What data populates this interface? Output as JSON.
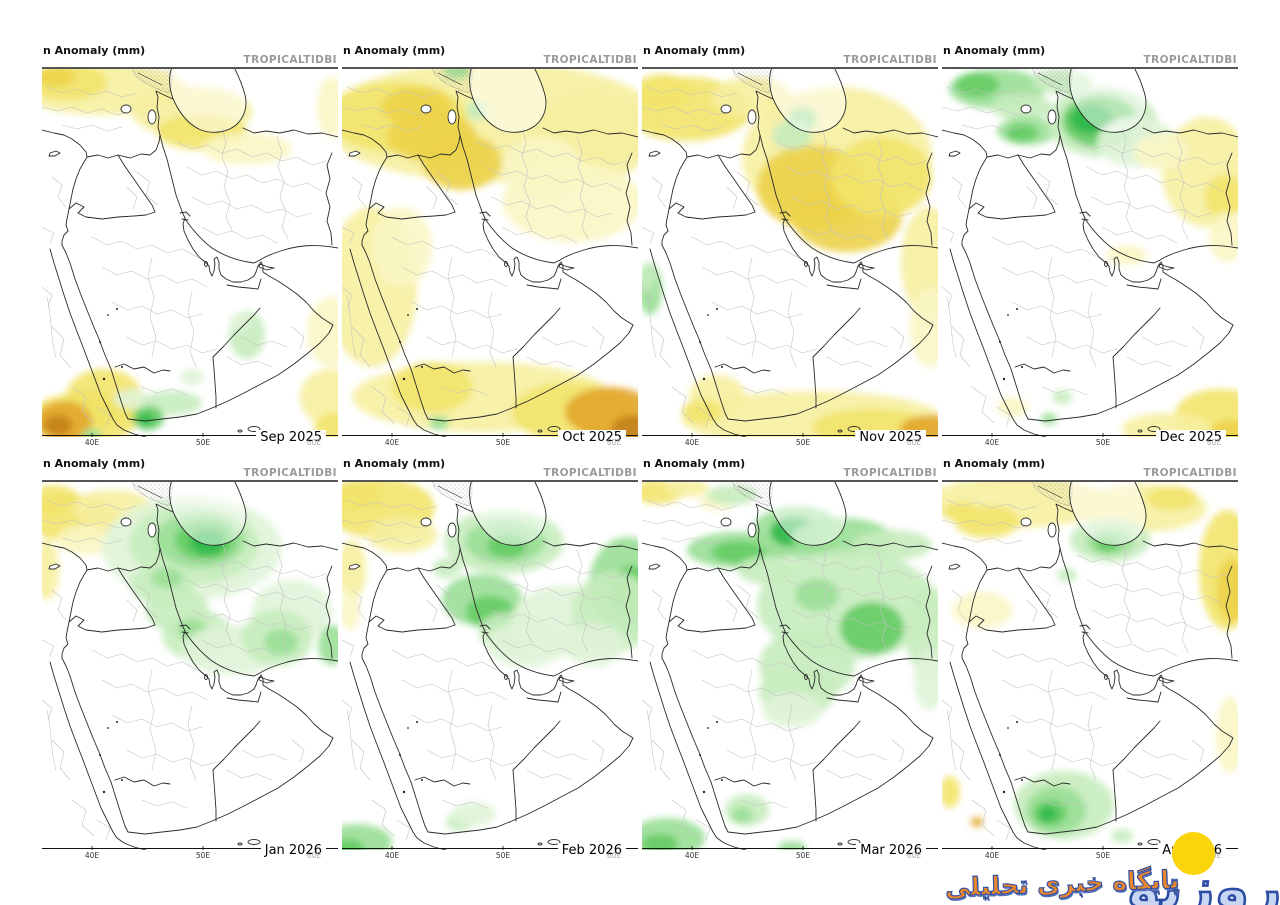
{
  "panel_title": "n Anomaly (mm)",
  "watermark": "TROPICALTIDBI",
  "axis_ticks": [
    "40E",
    "50E",
    "60E"
  ],
  "palette": {
    "y0": "#faf6c4",
    "y1": "#f6efa0",
    "y2": "#f2e46c",
    "y3": "#ecd34a",
    "o1": "#e2a62a",
    "o2": "#c4811a",
    "g0": "#e0f4d8",
    "g1": "#c6ecbe",
    "g2": "#9adf96",
    "g3": "#64cc64",
    "g4": "#2eb84a"
  },
  "panels": [
    {
      "month": "Sep 2025",
      "blobs": [
        [
          60,
          22,
          85,
          26,
          "y1"
        ],
        [
          25,
          15,
          40,
          18,
          "y2"
        ],
        [
          14,
          10,
          18,
          10,
          "y3"
        ],
        [
          150,
          45,
          60,
          26,
          "y1"
        ],
        [
          160,
          65,
          45,
          18,
          "y2"
        ],
        [
          205,
          82,
          45,
          16,
          "y0"
        ],
        [
          290,
          40,
          15,
          30,
          "y0"
        ],
        [
          290,
          265,
          25,
          35,
          "y0"
        ],
        [
          288,
          330,
          30,
          28,
          "y1"
        ],
        [
          292,
          360,
          20,
          14,
          "y2"
        ],
        [
          205,
          268,
          18,
          24,
          "g1"
        ],
        [
          198,
          255,
          10,
          10,
          "g0"
        ],
        [
          150,
          310,
          12,
          8,
          "g0"
        ],
        [
          62,
          330,
          38,
          28,
          "y2"
        ],
        [
          45,
          345,
          30,
          20,
          "y3"
        ],
        [
          40,
          352,
          55,
          26,
          "y2"
        ],
        [
          22,
          354,
          28,
          20,
          "o1"
        ],
        [
          16,
          358,
          14,
          10,
          "o2"
        ],
        [
          90,
          332,
          18,
          10,
          "g0"
        ],
        [
          130,
          336,
          30,
          12,
          "g1"
        ],
        [
          106,
          351,
          16,
          12,
          "g3"
        ],
        [
          104,
          352,
          8,
          6,
          "g4"
        ],
        [
          50,
          368,
          10,
          6,
          "g2"
        ]
      ]
    },
    {
      "month": "Oct 2025",
      "blobs": [
        [
          150,
          55,
          170,
          60,
          "y1"
        ],
        [
          55,
          50,
          70,
          35,
          "y2"
        ],
        [
          75,
          40,
          35,
          20,
          "y3"
        ],
        [
          90,
          70,
          45,
          25,
          "y3"
        ],
        [
          120,
          95,
          40,
          28,
          "y3"
        ],
        [
          250,
          70,
          60,
          45,
          "y1"
        ],
        [
          200,
          100,
          40,
          30,
          "y0"
        ],
        [
          230,
          135,
          70,
          40,
          "y0"
        ],
        [
          30,
          220,
          45,
          80,
          "y1"
        ],
        [
          60,
          180,
          30,
          40,
          "y0"
        ],
        [
          140,
          330,
          130,
          35,
          "y1"
        ],
        [
          90,
          320,
          40,
          25,
          "y2"
        ],
        [
          230,
          345,
          60,
          30,
          "y2"
        ],
        [
          268,
          345,
          45,
          25,
          "o1"
        ],
        [
          292,
          362,
          22,
          14,
          "o2"
        ],
        [
          115,
          5,
          14,
          7,
          "g2"
        ],
        [
          135,
          43,
          11,
          10,
          "g1"
        ],
        [
          97,
          356,
          10,
          7,
          "g2"
        ]
      ]
    },
    {
      "month": "Nov 2025",
      "blobs": [
        [
          45,
          42,
          65,
          32,
          "y2"
        ],
        [
          20,
          25,
          30,
          18,
          "y2"
        ],
        [
          110,
          30,
          40,
          20,
          "y1"
        ],
        [
          195,
          90,
          95,
          70,
          "y1"
        ],
        [
          170,
          120,
          55,
          42,
          "y3"
        ],
        [
          205,
          150,
          55,
          35,
          "y3"
        ],
        [
          240,
          110,
          50,
          40,
          "y2"
        ],
        [
          287,
          195,
          28,
          55,
          "y1"
        ],
        [
          288,
          260,
          20,
          40,
          "y0"
        ],
        [
          160,
          52,
          15,
          12,
          "g2"
        ],
        [
          150,
          68,
          20,
          14,
          "g1"
        ],
        [
          8,
          222,
          12,
          26,
          "g2"
        ],
        [
          5,
          210,
          8,
          14,
          "g1"
        ],
        [
          170,
          352,
          130,
          28,
          "y1"
        ],
        [
          230,
          360,
          60,
          18,
          "y2"
        ],
        [
          288,
          362,
          30,
          14,
          "o1"
        ],
        [
          75,
          328,
          28,
          20,
          "y1"
        ],
        [
          60,
          345,
          20,
          12,
          "y2"
        ]
      ]
    },
    {
      "month": "Dec 2025",
      "blobs": [
        [
          55,
          22,
          48,
          20,
          "g2"
        ],
        [
          35,
          18,
          22,
          12,
          "g3"
        ],
        [
          80,
          40,
          30,
          14,
          "g1"
        ],
        [
          120,
          15,
          30,
          12,
          "g1"
        ],
        [
          85,
          64,
          30,
          14,
          "g2"
        ],
        [
          80,
          66,
          16,
          9,
          "g3"
        ],
        [
          160,
          55,
          55,
          35,
          "g1"
        ],
        [
          158,
          54,
          38,
          26,
          "g3"
        ],
        [
          150,
          52,
          22,
          15,
          "g4"
        ],
        [
          195,
          75,
          40,
          25,
          "g0"
        ],
        [
          265,
          105,
          45,
          55,
          "y1"
        ],
        [
          283,
          130,
          20,
          22,
          "y2"
        ],
        [
          285,
          170,
          18,
          25,
          "y0"
        ],
        [
          220,
          85,
          28,
          18,
          "y0"
        ],
        [
          185,
          188,
          20,
          10,
          "y0"
        ],
        [
          278,
          348,
          45,
          26,
          "y2"
        ],
        [
          292,
          365,
          25,
          12,
          "y3"
        ],
        [
          225,
          362,
          45,
          16,
          "y1"
        ],
        [
          120,
          330,
          10,
          7,
          "g1"
        ],
        [
          70,
          340,
          15,
          10,
          "y0"
        ],
        [
          107,
          352,
          8,
          6,
          "g2"
        ]
      ]
    },
    {
      "month": "Jan 2026",
      "blobs": [
        [
          30,
          38,
          45,
          24,
          "y2"
        ],
        [
          12,
          20,
          25,
          15,
          "y2"
        ],
        [
          70,
          28,
          40,
          18,
          "y1"
        ],
        [
          5,
          90,
          12,
          30,
          "y1"
        ],
        [
          45,
          60,
          30,
          15,
          "y0"
        ],
        [
          150,
          68,
          90,
          52,
          "g0"
        ],
        [
          152,
          64,
          65,
          40,
          "g1"
        ],
        [
          158,
          60,
          45,
          28,
          "g2"
        ],
        [
          163,
          60,
          30,
          20,
          "g3"
        ],
        [
          166,
          62,
          18,
          13,
          "g4"
        ],
        [
          120,
          105,
          32,
          20,
          "g1"
        ],
        [
          125,
          98,
          16,
          10,
          "g2"
        ],
        [
          135,
          130,
          32,
          22,
          "g1"
        ],
        [
          155,
          155,
          35,
          25,
          "g1"
        ],
        [
          150,
          150,
          15,
          11,
          "g2"
        ],
        [
          190,
          170,
          50,
          25,
          "g0"
        ],
        [
          250,
          130,
          40,
          30,
          "g0"
        ],
        [
          235,
          158,
          36,
          28,
          "g1"
        ],
        [
          239,
          162,
          17,
          13,
          "g2"
        ],
        [
          290,
          165,
          14,
          20,
          "g2"
        ]
      ]
    },
    {
      "month": "Feb 2026",
      "blobs": [
        [
          38,
          28,
          55,
          30,
          "y2"
        ],
        [
          15,
          15,
          25,
          15,
          "y2"
        ],
        [
          60,
          55,
          35,
          18,
          "y1"
        ],
        [
          10,
          90,
          14,
          30,
          "y1"
        ],
        [
          8,
          130,
          10,
          20,
          "y0"
        ],
        [
          162,
          62,
          60,
          32,
          "g1"
        ],
        [
          163,
          62,
          40,
          22,
          "g2"
        ],
        [
          165,
          66,
          20,
          12,
          "g3"
        ],
        [
          105,
          88,
          14,
          10,
          "g1"
        ],
        [
          140,
          120,
          40,
          26,
          "g2"
        ],
        [
          148,
          132,
          24,
          16,
          "g3"
        ],
        [
          168,
          152,
          32,
          20,
          "g1"
        ],
        [
          185,
          165,
          40,
          22,
          "g0"
        ],
        [
          225,
          140,
          55,
          35,
          "g0"
        ],
        [
          285,
          105,
          38,
          48,
          "g2"
        ],
        [
          290,
          112,
          22,
          26,
          "g3"
        ],
        [
          272,
          132,
          42,
          40,
          "g1"
        ],
        [
          252,
          165,
          30,
          22,
          "g0"
        ],
        [
          118,
          342,
          14,
          9,
          "g1"
        ],
        [
          132,
          334,
          22,
          12,
          "g0"
        ],
        [
          15,
          362,
          35,
          18,
          "g2"
        ],
        [
          6,
          368,
          16,
          9,
          "g3"
        ]
      ]
    },
    {
      "month": "Mar 2026",
      "blobs": [
        [
          15,
          12,
          26,
          12,
          "y2"
        ],
        [
          45,
          8,
          22,
          9,
          "y1"
        ],
        [
          75,
          22,
          18,
          8,
          "y0"
        ],
        [
          90,
          15,
          25,
          10,
          "g1"
        ],
        [
          95,
          70,
          50,
          18,
          "g2"
        ],
        [
          97,
          72,
          28,
          11,
          "g3"
        ],
        [
          125,
          90,
          30,
          14,
          "g1"
        ],
        [
          155,
          52,
          45,
          26,
          "g2"
        ],
        [
          152,
          52,
          24,
          15,
          "g4"
        ],
        [
          200,
          58,
          50,
          20,
          "g2"
        ],
        [
          250,
          65,
          40,
          15,
          "g1"
        ],
        [
          205,
          125,
          90,
          55,
          "g1"
        ],
        [
          230,
          148,
          32,
          26,
          "g3"
        ],
        [
          175,
          115,
          22,
          16,
          "g2"
        ],
        [
          165,
          185,
          48,
          35,
          "g1"
        ],
        [
          155,
          212,
          38,
          26,
          "g1"
        ],
        [
          150,
          230,
          30,
          18,
          "g0"
        ],
        [
          285,
          150,
          22,
          45,
          "g1"
        ],
        [
          288,
          200,
          16,
          30,
          "g0"
        ],
        [
          105,
          330,
          22,
          16,
          "g1"
        ],
        [
          100,
          335,
          11,
          8,
          "g2"
        ],
        [
          25,
          358,
          38,
          20,
          "g2"
        ],
        [
          18,
          364,
          18,
          10,
          "g3"
        ],
        [
          150,
          368,
          14,
          7,
          "g2"
        ]
      ]
    },
    {
      "month": "Apr 2026",
      "blobs": [
        [
          75,
          22,
          90,
          26,
          "y1"
        ],
        [
          200,
          28,
          65,
          24,
          "y1"
        ],
        [
          45,
          42,
          32,
          16,
          "y2"
        ],
        [
          18,
          32,
          16,
          10,
          "y2"
        ],
        [
          230,
          18,
          25,
          12,
          "y2"
        ],
        [
          285,
          90,
          28,
          60,
          "y2"
        ],
        [
          290,
          110,
          16,
          32,
          "y3"
        ],
        [
          288,
          255,
          14,
          38,
          "y0"
        ],
        [
          40,
          130,
          30,
          18,
          "y0"
        ],
        [
          168,
          60,
          40,
          22,
          "g1"
        ],
        [
          168,
          62,
          24,
          13,
          "g2"
        ],
        [
          165,
          65,
          12,
          7,
          "g3"
        ],
        [
          125,
          95,
          10,
          7,
          "g1"
        ],
        [
          122,
          325,
          50,
          34,
          "g1"
        ],
        [
          114,
          330,
          30,
          24,
          "g2"
        ],
        [
          108,
          333,
          17,
          13,
          "g3"
        ],
        [
          106,
          334,
          9,
          7,
          "g4"
        ],
        [
          8,
          312,
          10,
          16,
          "y2"
        ],
        [
          35,
          342,
          6,
          5,
          "o1"
        ],
        [
          180,
          356,
          11,
          7,
          "g1"
        ]
      ]
    }
  ],
  "logo": {
    "brand": "روزنو",
    "tagline": "پایگاه خبری تحلیلی",
    "circle_color": "#fbd40b",
    "brand_fill": "#c7d6f2",
    "brand_outline": "#2d4da5",
    "tagline_fill": "#e8872b"
  }
}
